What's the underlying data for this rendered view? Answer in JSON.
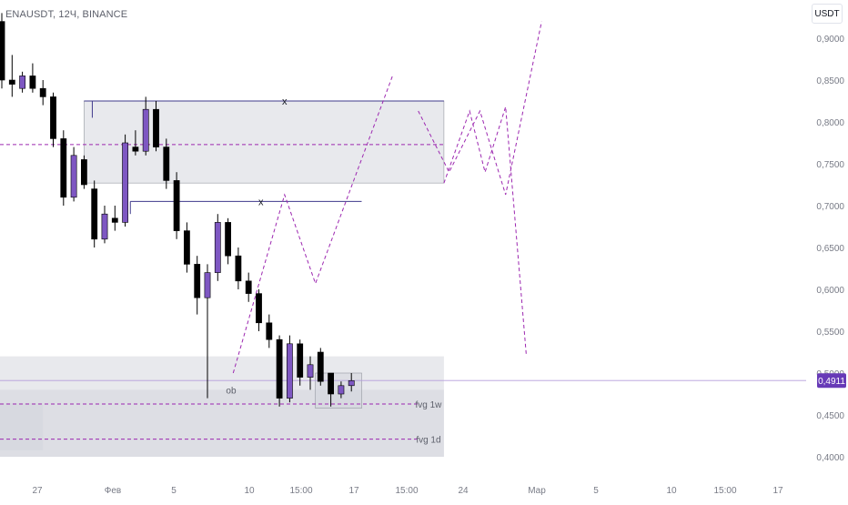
{
  "chart_header": {
    "symbol_line": "ENAUSDT, 12Ч, BINANCE",
    "currency": "USDT"
  },
  "colors": {
    "bull_body": "#7e57c2",
    "bear_body": "#000000",
    "wick": "#000000",
    "purple_line": "#9c27b0",
    "zone_fill": "#d1d4dc",
    "price_badge": "#673ab7"
  },
  "chart_data": {
    "type": "candlestick",
    "y_axis": {
      "ticks": [
        "0,9000",
        "0,8500",
        "0,8000",
        "0,7500",
        "0,7000",
        "0,6500",
        "0,6000",
        "0,5500",
        "0,5000",
        "0,4500",
        "0,4000"
      ],
      "range": [
        0.38,
        0.935
      ]
    },
    "x_axis": {
      "tick_labels": [
        "27",
        "Фев",
        "5",
        "10",
        "15:00",
        "17",
        "15:00",
        "24",
        "Мар",
        "5",
        "10",
        "15:00",
        "17"
      ]
    },
    "current_price": {
      "label": "0,4911",
      "value": 0.4911
    },
    "candles": [
      {
        "o": 0.92,
        "h": 0.93,
        "l": 0.84,
        "c": 0.85
      },
      {
        "o": 0.85,
        "h": 0.88,
        "l": 0.83,
        "c": 0.845
      },
      {
        "o": 0.84,
        "h": 0.86,
        "l": 0.835,
        "c": 0.855
      },
      {
        "o": 0.855,
        "h": 0.87,
        "l": 0.835,
        "c": 0.84
      },
      {
        "o": 0.84,
        "h": 0.85,
        "l": 0.82,
        "c": 0.83
      },
      {
        "o": 0.83,
        "h": 0.835,
        "l": 0.77,
        "c": 0.78
      },
      {
        "o": 0.78,
        "h": 0.79,
        "l": 0.7,
        "c": 0.71
      },
      {
        "o": 0.71,
        "h": 0.77,
        "l": 0.705,
        "c": 0.76
      },
      {
        "o": 0.755,
        "h": 0.76,
        "l": 0.72,
        "c": 0.725
      },
      {
        "o": 0.72,
        "h": 0.73,
        "l": 0.65,
        "c": 0.66
      },
      {
        "o": 0.66,
        "h": 0.7,
        "l": 0.655,
        "c": 0.69
      },
      {
        "o": 0.685,
        "h": 0.7,
        "l": 0.67,
        "c": 0.68
      },
      {
        "o": 0.68,
        "h": 0.785,
        "l": 0.675,
        "c": 0.775
      },
      {
        "o": 0.77,
        "h": 0.79,
        "l": 0.76,
        "c": 0.765
      },
      {
        "o": 0.765,
        "h": 0.83,
        "l": 0.76,
        "c": 0.815
      },
      {
        "o": 0.815,
        "h": 0.825,
        "l": 0.765,
        "c": 0.77
      },
      {
        "o": 0.77,
        "h": 0.78,
        "l": 0.72,
        "c": 0.73
      },
      {
        "o": 0.73,
        "h": 0.74,
        "l": 0.66,
        "c": 0.67
      },
      {
        "o": 0.67,
        "h": 0.68,
        "l": 0.62,
        "c": 0.63
      },
      {
        "o": 0.63,
        "h": 0.64,
        "l": 0.57,
        "c": 0.59
      },
      {
        "o": 0.59,
        "h": 0.63,
        "l": 0.47,
        "c": 0.62
      },
      {
        "o": 0.62,
        "h": 0.69,
        "l": 0.61,
        "c": 0.68
      },
      {
        "o": 0.68,
        "h": 0.685,
        "l": 0.63,
        "c": 0.64
      },
      {
        "o": 0.64,
        "h": 0.65,
        "l": 0.6,
        "c": 0.61
      },
      {
        "o": 0.61,
        "h": 0.62,
        "l": 0.585,
        "c": 0.595
      },
      {
        "o": 0.595,
        "h": 0.6,
        "l": 0.55,
        "c": 0.56
      },
      {
        "o": 0.56,
        "h": 0.57,
        "l": 0.53,
        "c": 0.54
      },
      {
        "o": 0.54,
        "h": 0.545,
        "l": 0.46,
        "c": 0.47
      },
      {
        "o": 0.47,
        "h": 0.545,
        "l": 0.465,
        "c": 0.535
      },
      {
        "o": 0.535,
        "h": 0.54,
        "l": 0.485,
        "c": 0.495
      },
      {
        "o": 0.495,
        "h": 0.52,
        "l": 0.48,
        "c": 0.51
      },
      {
        "o": 0.525,
        "h": 0.53,
        "l": 0.485,
        "c": 0.49
      },
      {
        "o": 0.5,
        "h": 0.5,
        "l": 0.46,
        "c": 0.475
      },
      {
        "o": 0.475,
        "h": 0.49,
        "l": 0.47,
        "c": 0.485
      },
      {
        "o": 0.485,
        "h": 0.5,
        "l": 0.478,
        "c": 0.491
      }
    ],
    "zones": [
      {
        "x1": -1,
        "x2": 43,
        "y1": 0.52,
        "y2": 0.4
      },
      {
        "x1": -1,
        "x2": 43,
        "y1": 0.48,
        "y2": 0.4
      },
      {
        "x1": -1,
        "x2": 4,
        "y1": 0.464,
        "y2": 0.408
      },
      {
        "x1": 8,
        "x2": 43,
        "y1": 0.825,
        "y2": 0.727
      },
      {
        "x1": 30.5,
        "x2": 35,
        "y1": 0.5,
        "y2": 0.458
      }
    ],
    "levels": [
      {
        "x1": 8,
        "x2": 43,
        "y": 0.825,
        "dashed": false
      },
      {
        "x1": 12.5,
        "x2": 35,
        "y": 0.705,
        "dashed": false
      },
      {
        "x1": -1,
        "x2": 43,
        "y": 0.773,
        "dashed": true
      },
      {
        "x1": -1,
        "x2": 40.5,
        "y": 0.463,
        "dashed": true
      },
      {
        "x1": -1,
        "x2": 40.5,
        "y": 0.421,
        "dashed": true
      }
    ],
    "level_labels": [
      {
        "text": "x",
        "x": 27.5,
        "y": 0.825
      },
      {
        "text": "x",
        "x": 25.2,
        "y": 0.705
      },
      {
        "text": "ob",
        "x": 22.3,
        "y": 0.48
      },
      {
        "text": "fvg 1w",
        "x": 41.5,
        "y": 0.463
      },
      {
        "text": "fvg 1d",
        "x": 41.5,
        "y": 0.421
      }
    ],
    "projections": [
      [
        [
          22.5,
          0.5
        ],
        [
          27.5,
          0.713
        ],
        [
          30.5,
          0.607
        ],
        [
          38.0,
          0.855
        ]
      ],
      [
        [
          40.5,
          0.813
        ],
        [
          43.5,
          0.74
        ],
        [
          46.5,
          0.813
        ],
        [
          49.0,
          0.713
        ],
        [
          52.5,
          0.92
        ]
      ],
      [
        [
          43.0,
          0.727
        ],
        [
          45.5,
          0.813
        ],
        [
          47.0,
          0.74
        ],
        [
          49.0,
          0.818
        ],
        [
          51.0,
          0.523
        ]
      ]
    ]
  }
}
